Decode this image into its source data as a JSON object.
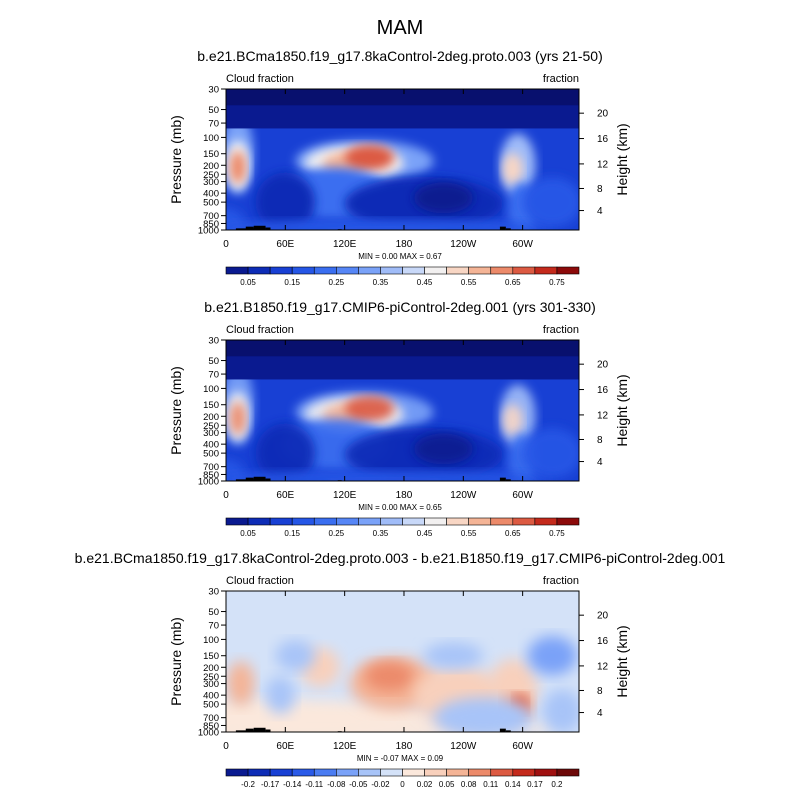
{
  "figure": {
    "title": "MAM"
  },
  "chart_data": [
    {
      "type": "heatmap",
      "title": "b.e21.BCma1850.f19_g17.8kaControl-2deg.proto.003 (yrs 21-50)",
      "left_label": "Cloud fraction",
      "right_label": "fraction",
      "ylabel": "Pressure (mb)",
      "ylabel_right": "Height (km)",
      "x_ticks": [
        "0",
        "60E",
        "120E",
        "180",
        "120W",
        "60W"
      ],
      "x_tick_values": [
        0,
        60,
        120,
        180,
        240,
        300
      ],
      "xlim": [
        0,
        357
      ],
      "y_ticks": [
        "30",
        "50",
        "70",
        "100",
        "150",
        "200",
        "250",
        "300",
        "400",
        "500",
        "700",
        "850",
        "1000"
      ],
      "y_tick_values": [
        30,
        50,
        70,
        100,
        150,
        200,
        250,
        300,
        400,
        500,
        700,
        850,
        1000
      ],
      "ylim": [
        30,
        1000
      ],
      "y_scale": "log",
      "height_ticks": [
        "4",
        "8",
        "12",
        "16",
        "20"
      ],
      "height_tick_values": [
        4,
        8,
        12,
        16,
        20
      ],
      "stats": "MIN =   0.00  MAX =   0.67",
      "colorbar_labels": [
        "0.05",
        "0.15",
        "0.25",
        "0.35",
        "0.45",
        "0.55",
        "0.65",
        "0.75"
      ],
      "colorbar_levels": [
        0.05,
        0.1,
        0.15,
        0.2,
        0.25,
        0.3,
        0.35,
        0.4,
        0.45,
        0.5,
        0.55,
        0.6,
        0.65,
        0.7,
        0.75
      ],
      "colorbar_colors": [
        "#0a1a90",
        "#0d2cb6",
        "#1840d4",
        "#2556e6",
        "#3a6ef0",
        "#5686f6",
        "#7aa2f8",
        "#a0bcf8",
        "#c8d8f8",
        "#f2f0f0",
        "#f8d6c4",
        "#f4b496",
        "#ec8a6a",
        "#dc5a42",
        "#c42a1c",
        "#8c0a0a"
      ]
    },
    {
      "type": "heatmap",
      "title": "b.e21.B1850.f19_g17.CMIP6-piControl-2deg.001 (yrs 301-330)",
      "left_label": "Cloud fraction",
      "right_label": "fraction",
      "ylabel": "Pressure (mb)",
      "ylabel_right": "Height (km)",
      "x_ticks": [
        "0",
        "60E",
        "120E",
        "180",
        "120W",
        "60W"
      ],
      "x_tick_values": [
        0,
        60,
        120,
        180,
        240,
        300
      ],
      "xlim": [
        0,
        357
      ],
      "y_ticks": [
        "30",
        "50",
        "70",
        "100",
        "150",
        "200",
        "250",
        "300",
        "400",
        "500",
        "700",
        "850",
        "1000"
      ],
      "y_tick_values": [
        30,
        50,
        70,
        100,
        150,
        200,
        250,
        300,
        400,
        500,
        700,
        850,
        1000
      ],
      "ylim": [
        30,
        1000
      ],
      "y_scale": "log",
      "height_ticks": [
        "4",
        "8",
        "12",
        "16",
        "20"
      ],
      "height_tick_values": [
        4,
        8,
        12,
        16,
        20
      ],
      "stats": "MIN =   0.00  MAX =   0.65",
      "colorbar_labels": [
        "0.05",
        "0.15",
        "0.25",
        "0.35",
        "0.45",
        "0.55",
        "0.65",
        "0.75"
      ],
      "colorbar_levels": [
        0.05,
        0.1,
        0.15,
        0.2,
        0.25,
        0.3,
        0.35,
        0.4,
        0.45,
        0.5,
        0.55,
        0.6,
        0.65,
        0.7,
        0.75
      ],
      "colorbar_colors": [
        "#0a1a90",
        "#0d2cb6",
        "#1840d4",
        "#2556e6",
        "#3a6ef0",
        "#5686f6",
        "#7aa2f8",
        "#a0bcf8",
        "#c8d8f8",
        "#f2f0f0",
        "#f8d6c4",
        "#f4b496",
        "#ec8a6a",
        "#dc5a42",
        "#c42a1c",
        "#8c0a0a"
      ]
    },
    {
      "type": "heatmap",
      "title": "b.e21.BCma1850.f19_g17.8kaControl-2deg.proto.003 - b.e21.B1850.f19_g17.CMIP6-piControl-2deg.001",
      "left_label": "Cloud fraction",
      "right_label": "fraction",
      "ylabel": "Pressure (mb)",
      "ylabel_right": "Height (km)",
      "x_ticks": [
        "0",
        "60E",
        "120E",
        "180",
        "120W",
        "60W"
      ],
      "x_tick_values": [
        0,
        60,
        120,
        180,
        240,
        300
      ],
      "xlim": [
        0,
        357
      ],
      "y_ticks": [
        "30",
        "50",
        "70",
        "100",
        "150",
        "200",
        "250",
        "300",
        "400",
        "500",
        "700",
        "850",
        "1000"
      ],
      "y_tick_values": [
        30,
        50,
        70,
        100,
        150,
        200,
        250,
        300,
        400,
        500,
        700,
        850,
        1000
      ],
      "ylim": [
        30,
        1000
      ],
      "y_scale": "log",
      "height_ticks": [
        "4",
        "8",
        "12",
        "16",
        "20"
      ],
      "height_tick_values": [
        4,
        8,
        12,
        16,
        20
      ],
      "stats": "MIN =  -0.07  MAX =   0.09",
      "colorbar_labels": [
        "-0.2",
        "-0.17",
        "-0.14",
        "-0.11",
        "-0.08",
        "-0.05",
        "-0.02",
        "0",
        "0.02",
        "0.05",
        "0.08",
        "0.11",
        "0.14",
        "0.17",
        "0.2"
      ],
      "colorbar_levels": [
        -0.2,
        -0.17,
        -0.14,
        -0.11,
        -0.08,
        -0.05,
        -0.02,
        0,
        0.02,
        0.05,
        0.08,
        0.11,
        0.14,
        0.17,
        0.2
      ],
      "colorbar_colors": [
        "#0a1a90",
        "#0d2cb6",
        "#1840d4",
        "#2a5ae8",
        "#4a7cf2",
        "#7aa2f8",
        "#a8c4f8",
        "#d4e2f8",
        "#fbe8dc",
        "#f8d0bc",
        "#f4b496",
        "#ec8a6a",
        "#dc5a42",
        "#c42a1c",
        "#a01010",
        "#6c0808"
      ]
    }
  ]
}
